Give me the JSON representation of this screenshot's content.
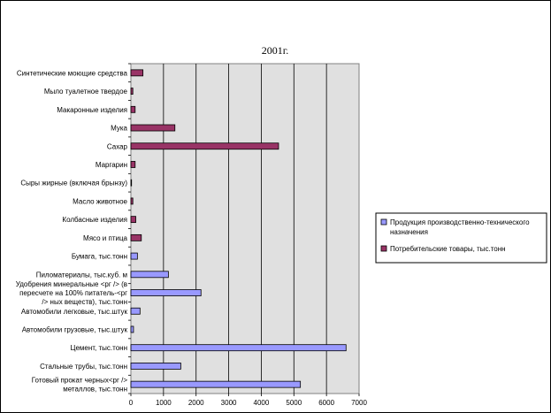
{
  "chart_data": {
    "type": "bar",
    "orientation": "horizontal",
    "title": "2001г.",
    "xlabel": "",
    "ylabel": "",
    "xlim": [
      0,
      7000
    ],
    "x_ticks": [
      0,
      1000,
      2000,
      3000,
      4000,
      5000,
      6000,
      7000
    ],
    "grid": "vertical",
    "legend_position": "right",
    "categories": [
      [
        "Синтетические моющие средства"
      ],
      [
        "Мыло туалетное твердое"
      ],
      [
        "Макаронные изделия"
      ],
      [
        "Мука"
      ],
      [
        "Сахар"
      ],
      [
        "Маргарин"
      ],
      [
        "Сыры жирные (включая брынзу)"
      ],
      [
        "Масло животное"
      ],
      [
        "Колбасные изделия"
      ],
      [
        "Мясо и птица"
      ],
      [
        "Бумага, тыс.тонн"
      ],
      [
        "Пиломатериалы, тыс.куб. м"
      ],
      [
        "Удобрения минеральные <рг /> (в",
        "пересчете на 100% питатель-<рг",
        "/> ных веществ), тыс.тонн"
      ],
      [
        "Автомобили легковые, тыс.штук"
      ],
      [
        "Автомобили грузовые, тыс.штук"
      ],
      [
        "Цемент, тыс.тонн"
      ],
      [
        "Стальные трубы, тыс.тонн"
      ],
      [
        "Готовый прокат черных<рг />",
        "металлов, тыс.тонн"
      ]
    ],
    "series": [
      {
        "name": [
          "Продукция производственно-технического",
          "назначения"
        ],
        "color": "#9999ff",
        "values": [
          null,
          null,
          null,
          null,
          null,
          null,
          null,
          null,
          null,
          null,
          200,
          1150,
          2150,
          280,
          80,
          6600,
          1530,
          5200
        ]
      },
      {
        "name": [
          "Потребительские товары, тыс.тонн"
        ],
        "color": "#993366",
        "values": [
          370,
          60,
          130,
          1350,
          4530,
          130,
          20,
          60,
          150,
          320,
          null,
          null,
          null,
          null,
          null,
          null,
          null,
          null
        ]
      }
    ]
  },
  "colors": {
    "plot_background": "#e0e0e0",
    "grid": "#000000"
  }
}
